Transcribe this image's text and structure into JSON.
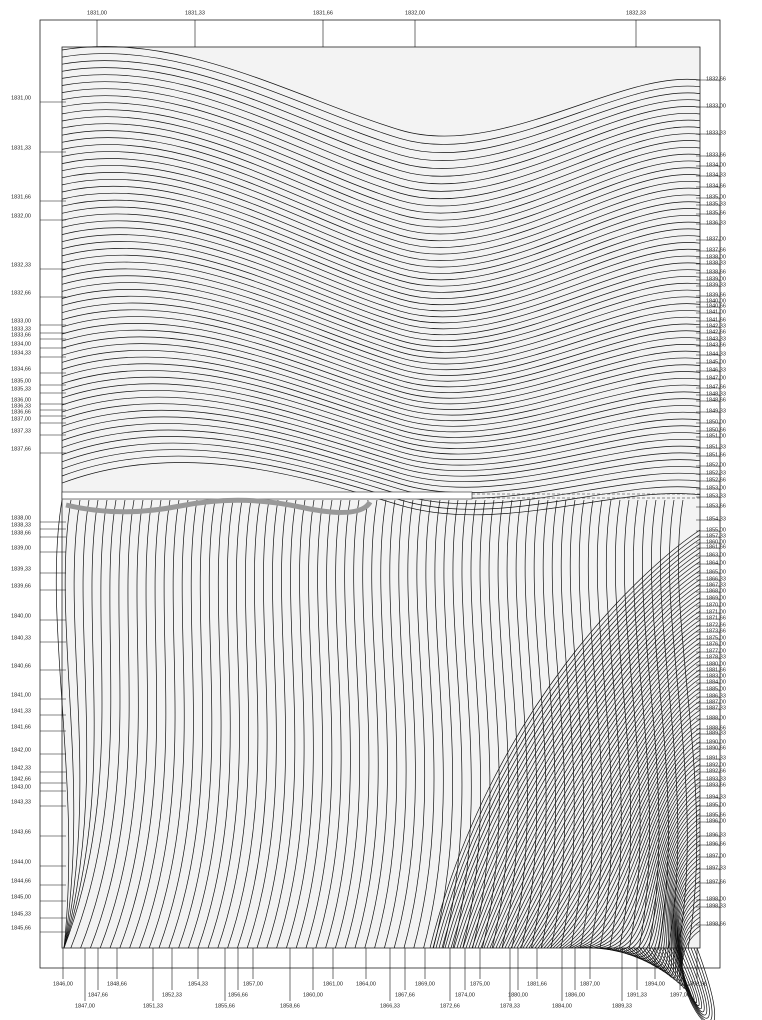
{
  "top_labels": [
    "1831,00",
    "1831,33",
    "1831,66",
    "1832,00",
    "1832,33"
  ],
  "left_labels": [
    "1831,00",
    "1831,33",
    "1831,66",
    "1832,00",
    "1832,33",
    "1832,66",
    "1833,00",
    "1833,33",
    "1833,66",
    "1834,00",
    "1834,33",
    "1834,66",
    "1835,00",
    "1835,33",
    "1836,00",
    "1836,33",
    "1836,66",
    "1837,00",
    "1837,33",
    "1837,66",
    "1838,00",
    "1838,33",
    "1838,66",
    "1839,00",
    "1839,33",
    "1839,66",
    "1840,00",
    "1840,33",
    "1840,66",
    "1841,00",
    "1841,33",
    "1841,66",
    "1842,00",
    "1842,33",
    "1842,66",
    "1843,00",
    "1843,33",
    "1843,66",
    "1844,00",
    "1844,66",
    "1845,00",
    "1845,33",
    "1845,66"
  ],
  "right_labels": [
    "1832,66",
    "1833,00",
    "1833,33",
    "1833,66",
    "1834,00",
    "1834,33",
    "1834,66",
    "1835,00",
    "1835,33",
    "1835,66",
    "1836,33",
    "1837,00",
    "1837,66",
    "1838,00",
    "1838,33",
    "1838,66",
    "1839,00",
    "1839,33",
    "1839,66",
    "1840,00",
    "1840,66",
    "1841,00",
    "1841,66",
    "1842,33",
    "1842,66",
    "1843,33",
    "1843,66",
    "1844,33",
    "1845,00",
    "1846,33",
    "1847,00",
    "1847,66",
    "1848,33",
    "1848,66",
    "1849,33",
    "1850,00",
    "1850,66",
    "1851,00",
    "1851,33",
    "1851,66",
    "1852,00",
    "1852,33",
    "1852,66",
    "1853,00",
    "1853,33",
    "1853,66",
    "1854,33",
    "1855,00",
    "1857,33",
    "1860,00",
    "1861,66",
    "1863,00",
    "1864,00",
    "1865,00",
    "1866,33",
    "1867,33",
    "1868,00",
    "1869,00",
    "1870,00",
    "1871,00",
    "1871,66",
    "1872,66",
    "1873,66",
    "1875,00",
    "1876,00",
    "1877,00",
    "1878,33",
    "1880,00",
    "1881,66",
    "1883,00",
    "1884,00",
    "1885,00",
    "1886,33",
    "1887,00",
    "1887,33",
    "1888,00",
    "1888,66",
    "1889,33",
    "1890,00",
    "1890,66",
    "1891,33",
    "1892,00",
    "1892,66",
    "1893,33",
    "1893,66",
    "1894,33",
    "1895,00",
    "1895,66",
    "1896,00",
    "1896,33",
    "1896,66",
    "1897,00",
    "1897,33",
    "1897,66",
    "1898,00",
    "1898,33",
    "1898,66"
  ],
  "bottom_labels": [
    "1846,00",
    "1847,66",
    "1847,00",
    "1848,66",
    "1851,33",
    "1852,33",
    "1854,33",
    "1855,66",
    "1856,66",
    "1857,00",
    "1858,66",
    "1860,00",
    "1861,00",
    "1864,00",
    "1866,33",
    "1867,66",
    "1869,00",
    "1872,66",
    "1874,00",
    "1875,00",
    "1878,33",
    "1880,00",
    "1881,66",
    "1884,00",
    "1886,00",
    "1887,00",
    "1889,33",
    "1891,33",
    "1894,00",
    "1897,00",
    "1898,66"
  ]
}
